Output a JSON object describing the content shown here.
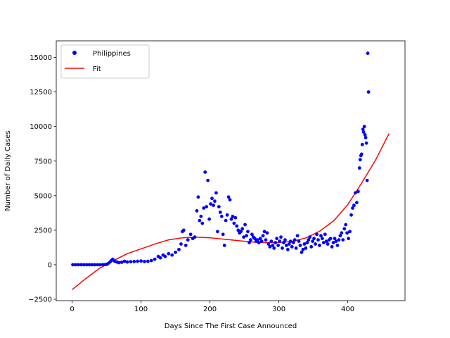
{
  "chart_data": {
    "type": "scatter",
    "title": "",
    "xlabel": "Days Since The First Case Announced",
    "ylabel": "Number of Daily Cases",
    "xlim": [
      -23,
      483
    ],
    "ylim": [
      -2600,
      16200
    ],
    "xticks": [
      0,
      100,
      200,
      300,
      400
    ],
    "yticks": [
      -2500,
      0,
      2500,
      5000,
      7500,
      10000,
      12500,
      15000
    ],
    "grid": false,
    "legend_position": "top-left",
    "series": [
      {
        "name": "Philippines",
        "style": "points",
        "color": "#0000ff",
        "points": [
          [
            1,
            0
          ],
          [
            5,
            0
          ],
          [
            9,
            0
          ],
          [
            13,
            0
          ],
          [
            17,
            0
          ],
          [
            21,
            0
          ],
          [
            25,
            0
          ],
          [
            29,
            0
          ],
          [
            33,
            0
          ],
          [
            37,
            0
          ],
          [
            41,
            0
          ],
          [
            45,
            5
          ],
          [
            48,
            10
          ],
          [
            50,
            30
          ],
          [
            52,
            80
          ],
          [
            55,
            200
          ],
          [
            57,
            300
          ],
          [
            59,
            400
          ],
          [
            62,
            250
          ],
          [
            65,
            200
          ],
          [
            68,
            150
          ],
          [
            72,
            180
          ],
          [
            76,
            250
          ],
          [
            80,
            200
          ],
          [
            85,
            220
          ],
          [
            90,
            230
          ],
          [
            95,
            250
          ],
          [
            100,
            270
          ],
          [
            105,
            230
          ],
          [
            110,
            250
          ],
          [
            115,
            300
          ],
          [
            120,
            400
          ],
          [
            125,
            600
          ],
          [
            128,
            500
          ],
          [
            132,
            700
          ],
          [
            135,
            600
          ],
          [
            140,
            800
          ],
          [
            145,
            700
          ],
          [
            150,
            900
          ],
          [
            155,
            1100
          ],
          [
            158,
            1500
          ],
          [
            160,
            2400
          ],
          [
            162,
            2500
          ],
          [
            165,
            1400
          ],
          [
            168,
            1800
          ],
          [
            172,
            2200
          ],
          [
            175,
            1900
          ],
          [
            178,
            2000
          ],
          [
            181,
            3900
          ],
          [
            183,
            4900
          ],
          [
            185,
            3200
          ],
          [
            187,
            3500
          ],
          [
            189,
            3000
          ],
          [
            191,
            4100
          ],
          [
            193,
            6700
          ],
          [
            195,
            4200
          ],
          [
            197,
            6100
          ],
          [
            199,
            3300
          ],
          [
            201,
            4400
          ],
          [
            203,
            4800
          ],
          [
            205,
            4300
          ],
          [
            207,
            4600
          ],
          [
            209,
            5200
          ],
          [
            211,
            2400
          ],
          [
            213,
            4200
          ],
          [
            215,
            3800
          ],
          [
            217,
            3500
          ],
          [
            219,
            2200
          ],
          [
            221,
            1400
          ],
          [
            223,
            3200
          ],
          [
            225,
            3600
          ],
          [
            227,
            4900
          ],
          [
            229,
            4700
          ],
          [
            231,
            3300
          ],
          [
            233,
            3500
          ],
          [
            235,
            3000
          ],
          [
            237,
            3400
          ],
          [
            239,
            2800
          ],
          [
            241,
            2500
          ],
          [
            243,
            2300
          ],
          [
            245,
            2400
          ],
          [
            247,
            2600
          ],
          [
            249,
            2000
          ],
          [
            251,
            2900
          ],
          [
            253,
            2100
          ],
          [
            255,
            2400
          ],
          [
            257,
            1600
          ],
          [
            259,
            1800
          ],
          [
            261,
            2200
          ],
          [
            263,
            2000
          ],
          [
            265,
            1900
          ],
          [
            267,
            1700
          ],
          [
            269,
            1800
          ],
          [
            271,
            1600
          ],
          [
            273,
            1900
          ],
          [
            275,
            1700
          ],
          [
            277,
            2100
          ],
          [
            279,
            2400
          ],
          [
            281,
            1800
          ],
          [
            283,
            2300
          ],
          [
            285,
            1500
          ],
          [
            287,
            1300
          ],
          [
            289,
            1700
          ],
          [
            291,
            1400
          ],
          [
            293,
            1200
          ],
          [
            295,
            1600
          ],
          [
            297,
            1900
          ],
          [
            299,
            1400
          ],
          [
            301,
            1700
          ],
          [
            303,
            2000
          ],
          [
            305,
            1200
          ],
          [
            307,
            1600
          ],
          [
            309,
            1800
          ],
          [
            311,
            1400
          ],
          [
            313,
            1100
          ],
          [
            315,
            1500
          ],
          [
            317,
            1700
          ],
          [
            319,
            1300
          ],
          [
            321,
            1600
          ],
          [
            323,
            1800
          ],
          [
            325,
            1200
          ],
          [
            327,
            2100
          ],
          [
            329,
            1700
          ],
          [
            331,
            1400
          ],
          [
            333,
            900
          ],
          [
            335,
            1100
          ],
          [
            337,
            1500
          ],
          [
            339,
            1200
          ],
          [
            341,
            1600
          ],
          [
            343,
            1800
          ],
          [
            345,
            2000
          ],
          [
            347,
            1300
          ],
          [
            349,
            1700
          ],
          [
            351,
            1900
          ],
          [
            353,
            1500
          ],
          [
            355,
            2200
          ],
          [
            357,
            1800
          ],
          [
            359,
            1400
          ],
          [
            361,
            2100
          ],
          [
            363,
            1900
          ],
          [
            365,
            1600
          ],
          [
            367,
            2200
          ],
          [
            369,
            1700
          ],
          [
            371,
            1500
          ],
          [
            373,
            1800
          ],
          [
            375,
            1900
          ],
          [
            377,
            1300
          ],
          [
            379,
            1600
          ],
          [
            381,
            1900
          ],
          [
            383,
            1700
          ],
          [
            385,
            1400
          ],
          [
            387,
            1800
          ],
          [
            389,
            2100
          ],
          [
            391,
            2300
          ],
          [
            393,
            1800
          ],
          [
            395,
            2600
          ],
          [
            397,
            2900
          ],
          [
            399,
            2300
          ],
          [
            401,
            1900
          ],
          [
            403,
            2400
          ],
          [
            405,
            3600
          ],
          [
            407,
            4100
          ],
          [
            409,
            4300
          ],
          [
            411,
            5200
          ],
          [
            413,
            4500
          ],
          [
            415,
            5300
          ],
          [
            417,
            7000
          ],
          [
            418,
            7600
          ],
          [
            419,
            7900
          ],
          [
            420,
            8000
          ],
          [
            421,
            8700
          ],
          [
            422,
            9800
          ],
          [
            423,
            9600
          ],
          [
            424,
            10000
          ],
          [
            425,
            9400
          ],
          [
            426,
            9200
          ],
          [
            427,
            8800
          ],
          [
            428,
            6100
          ],
          [
            429,
            15300
          ],
          [
            430,
            12500
          ]
        ]
      },
      {
        "name": "Fit",
        "style": "line",
        "color": "#ff0000",
        "points": [
          [
            0,
            -1800
          ],
          [
            20,
            -1000
          ],
          [
            40,
            -250
          ],
          [
            60,
            300
          ],
          [
            80,
            800
          ],
          [
            100,
            1150
          ],
          [
            120,
            1500
          ],
          [
            140,
            1800
          ],
          [
            160,
            1950
          ],
          [
            180,
            2000
          ],
          [
            200,
            1950
          ],
          [
            220,
            1850
          ],
          [
            240,
            1750
          ],
          [
            260,
            1650
          ],
          [
            280,
            1600
          ],
          [
            300,
            1600
          ],
          [
            320,
            1700
          ],
          [
            340,
            1950
          ],
          [
            360,
            2450
          ],
          [
            380,
            3200
          ],
          [
            400,
            4350
          ],
          [
            420,
            5900
          ],
          [
            440,
            7550
          ],
          [
            460,
            9500
          ]
        ]
      }
    ]
  }
}
